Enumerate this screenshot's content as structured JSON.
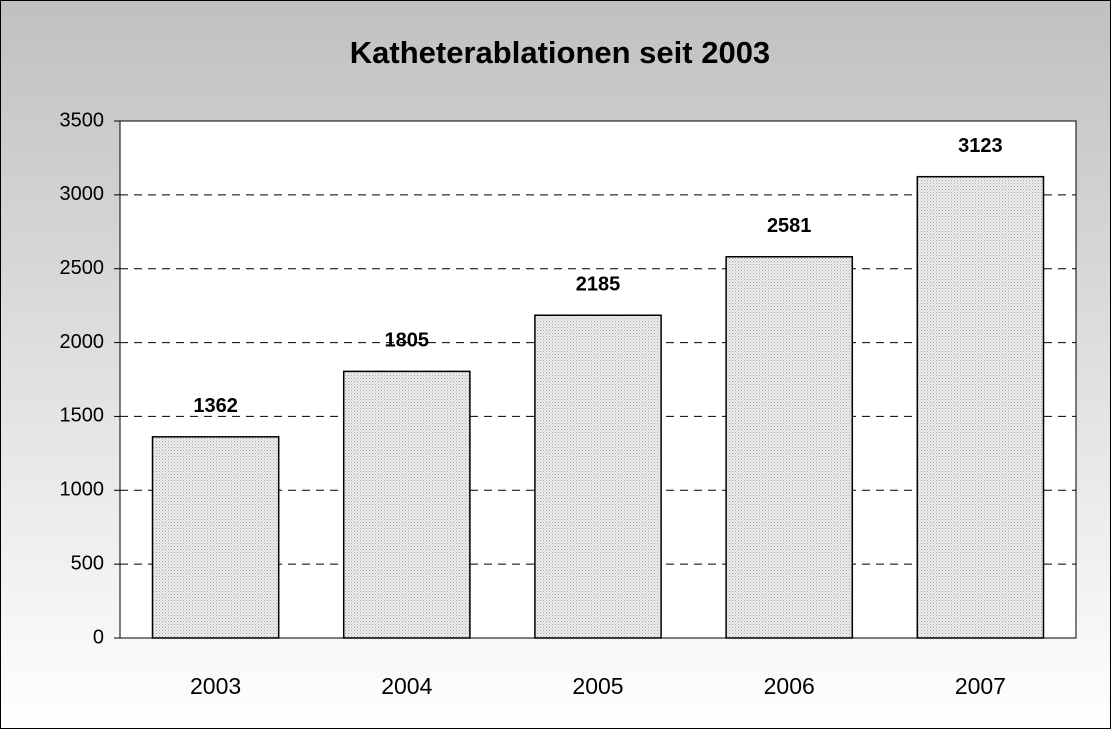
{
  "chart_data": {
    "type": "bar",
    "title": "Katheterablationen seit 2003",
    "categories": [
      "2003",
      "2004",
      "2005",
      "2006",
      "2007"
    ],
    "values": [
      1362,
      1805,
      2185,
      2581,
      3123
    ],
    "color": "#d4d4d4",
    "ylim": [
      0,
      3500
    ],
    "yticks": [
      0,
      500,
      1000,
      1500,
      2000,
      2500,
      3000,
      3500
    ],
    "grid": true
  }
}
